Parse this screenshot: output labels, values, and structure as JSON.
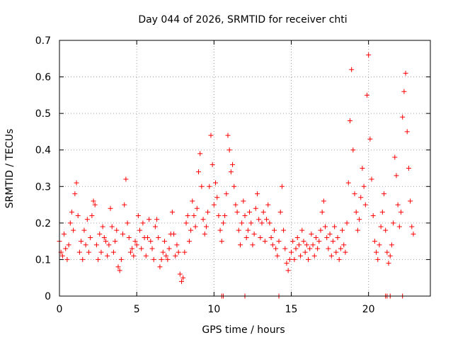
{
  "chart_data": {
    "type": "scatter",
    "title": "Day 044 of 2026, SRMTID for receiver chti",
    "xlabel": "GPS time / hours",
    "ylabel": "SRMTID / TECUs",
    "xlim": [
      0,
      24
    ],
    "ylim": [
      0,
      0.7
    ],
    "x_ticks": [
      0,
      5,
      10,
      15,
      20
    ],
    "x_tick_labels": [
      "0",
      "5",
      "10",
      "15",
      "20"
    ],
    "y_ticks": [
      0,
      0.1,
      0.2,
      0.3,
      0.4,
      0.5,
      0.6,
      0.7
    ],
    "y_tick_labels": [
      "0",
      "0.1",
      "0.2",
      "0.3",
      "0.4",
      "0.5",
      "0.6",
      "0.7"
    ],
    "grid": true,
    "marker": "plus",
    "series_color": "#ff0000",
    "series": [
      {
        "name": "SRMTID",
        "points": [
          [
            0.0,
            0.15
          ],
          [
            0.1,
            0.12
          ],
          [
            0.2,
            0.11
          ],
          [
            0.3,
            0.17
          ],
          [
            0.4,
            0.13
          ],
          [
            0.5,
            0.1
          ],
          [
            0.6,
            0.14
          ],
          [
            0.7,
            0.2
          ],
          [
            0.8,
            0.23
          ],
          [
            0.9,
            0.18
          ],
          [
            1.0,
            0.28
          ],
          [
            1.1,
            0.31
          ],
          [
            1.2,
            0.22
          ],
          [
            1.3,
            0.12
          ],
          [
            1.4,
            0.15
          ],
          [
            1.5,
            0.1
          ],
          [
            1.6,
            0.18
          ],
          [
            1.7,
            0.14
          ],
          [
            1.8,
            0.21
          ],
          [
            1.9,
            0.12
          ],
          [
            2.0,
            0.16
          ],
          [
            2.1,
            0.22
          ],
          [
            2.2,
            0.26
          ],
          [
            2.3,
            0.25
          ],
          [
            2.4,
            0.14
          ],
          [
            2.5,
            0.1
          ],
          [
            2.6,
            0.17
          ],
          [
            2.7,
            0.12
          ],
          [
            2.8,
            0.19
          ],
          [
            2.9,
            0.16
          ],
          [
            3.0,
            0.15
          ],
          [
            3.1,
            0.11
          ],
          [
            3.2,
            0.14
          ],
          [
            3.3,
            0.24
          ],
          [
            3.4,
            0.19
          ],
          [
            3.5,
            0.12
          ],
          [
            3.6,
            0.15
          ],
          [
            3.7,
            0.18
          ],
          [
            3.8,
            0.08
          ],
          [
            3.9,
            0.07
          ],
          [
            4.0,
            0.1
          ],
          [
            4.1,
            0.17
          ],
          [
            4.2,
            0.25
          ],
          [
            4.3,
            0.32
          ],
          [
            4.4,
            0.2
          ],
          [
            4.5,
            0.16
          ],
          [
            4.6,
            0.12
          ],
          [
            4.7,
            0.13
          ],
          [
            4.8,
            0.11
          ],
          [
            4.9,
            0.15
          ],
          [
            5.0,
            0.14
          ],
          [
            5.1,
            0.22
          ],
          [
            5.2,
            0.18
          ],
          [
            5.3,
            0.13
          ],
          [
            5.4,
            0.2
          ],
          [
            5.5,
            0.16
          ],
          [
            5.6,
            0.11
          ],
          [
            5.7,
            0.16
          ],
          [
            5.8,
            0.21
          ],
          [
            5.9,
            0.15
          ],
          [
            6.0,
            0.13
          ],
          [
            6.1,
            0.1
          ],
          [
            6.2,
            0.19
          ],
          [
            6.3,
            0.21
          ],
          [
            6.4,
            0.16
          ],
          [
            6.5,
            0.08
          ],
          [
            6.6,
            0.1
          ],
          [
            6.7,
            0.12
          ],
          [
            6.8,
            0.15
          ],
          [
            6.9,
            0.11
          ],
          [
            7.0,
            0.1
          ],
          [
            7.1,
            0.13
          ],
          [
            7.2,
            0.17
          ],
          [
            7.3,
            0.23
          ],
          [
            7.4,
            0.17
          ],
          [
            7.5,
            0.11
          ],
          [
            7.6,
            0.14
          ],
          [
            7.7,
            0.12
          ],
          [
            7.8,
            0.06
          ],
          [
            7.9,
            0.04
          ],
          [
            8.0,
            0.05
          ],
          [
            8.1,
            0.12
          ],
          [
            8.2,
            0.2
          ],
          [
            8.3,
            0.22
          ],
          [
            8.4,
            0.15
          ],
          [
            8.5,
            0.18
          ],
          [
            8.6,
            0.26
          ],
          [
            8.7,
            0.22
          ],
          [
            8.8,
            0.19
          ],
          [
            8.9,
            0.24
          ],
          [
            9.0,
            0.34
          ],
          [
            9.1,
            0.39
          ],
          [
            9.2,
            0.3
          ],
          [
            9.3,
            0.21
          ],
          [
            9.4,
            0.17
          ],
          [
            9.5,
            0.19
          ],
          [
            9.6,
            0.23
          ],
          [
            9.7,
            0.3
          ],
          [
            9.8,
            0.44
          ],
          [
            9.9,
            0.36
          ],
          [
            10.0,
            0.25
          ],
          [
            10.1,
            0.31
          ],
          [
            10.2,
            0.27
          ],
          [
            10.3,
            0.22
          ],
          [
            10.4,
            0.18
          ],
          [
            10.5,
            0.15
          ],
          [
            10.6,
            0.2
          ],
          [
            10.7,
            0.22
          ],
          [
            10.8,
            0.28
          ],
          [
            10.9,
            0.44
          ],
          [
            11.0,
            0.4
          ],
          [
            11.1,
            0.34
          ],
          [
            11.2,
            0.36
          ],
          [
            11.3,
            0.3
          ],
          [
            11.4,
            0.25
          ],
          [
            11.5,
            0.23
          ],
          [
            11.6,
            0.18
          ],
          [
            11.7,
            0.14
          ],
          [
            11.8,
            0.2
          ],
          [
            11.9,
            0.26
          ],
          [
            12.0,
            0.22
          ],
          [
            12.1,
            0.16
          ],
          [
            12.2,
            0.18
          ],
          [
            12.3,
            0.23
          ],
          [
            12.4,
            0.2
          ],
          [
            12.5,
            0.14
          ],
          [
            12.6,
            0.17
          ],
          [
            12.7,
            0.24
          ],
          [
            12.8,
            0.28
          ],
          [
            12.9,
            0.21
          ],
          [
            13.0,
            0.16
          ],
          [
            13.1,
            0.2
          ],
          [
            13.2,
            0.23
          ],
          [
            13.3,
            0.15
          ],
          [
            13.4,
            0.21
          ],
          [
            13.5,
            0.25
          ],
          [
            13.6,
            0.2
          ],
          [
            13.7,
            0.16
          ],
          [
            13.8,
            0.14
          ],
          [
            13.9,
            0.18
          ],
          [
            14.0,
            0.13
          ],
          [
            14.1,
            0.11
          ],
          [
            14.2,
            0.15
          ],
          [
            14.3,
            0.23
          ],
          [
            14.4,
            0.3
          ],
          [
            14.5,
            0.18
          ],
          [
            14.6,
            0.13
          ],
          [
            14.7,
            0.09
          ],
          [
            14.8,
            0.07
          ],
          [
            14.9,
            0.1
          ],
          [
            15.0,
            0.12
          ],
          [
            15.1,
            0.15
          ],
          [
            15.2,
            0.1
          ],
          [
            15.3,
            0.13
          ],
          [
            15.4,
            0.16
          ],
          [
            15.5,
            0.14
          ],
          [
            15.6,
            0.11
          ],
          [
            15.7,
            0.18
          ],
          [
            15.8,
            0.15
          ],
          [
            15.9,
            0.12
          ],
          [
            16.0,
            0.14
          ],
          [
            16.1,
            0.1
          ],
          [
            16.2,
            0.13
          ],
          [
            16.3,
            0.17
          ],
          [
            16.4,
            0.14
          ],
          [
            16.5,
            0.11
          ],
          [
            16.6,
            0.16
          ],
          [
            16.7,
            0.13
          ],
          [
            16.8,
            0.15
          ],
          [
            16.9,
            0.18
          ],
          [
            17.0,
            0.23
          ],
          [
            17.1,
            0.26
          ],
          [
            17.2,
            0.19
          ],
          [
            17.3,
            0.16
          ],
          [
            17.4,
            0.13
          ],
          [
            17.5,
            0.17
          ],
          [
            17.6,
            0.11
          ],
          [
            17.7,
            0.15
          ],
          [
            17.8,
            0.19
          ],
          [
            17.9,
            0.12
          ],
          [
            18.0,
            0.16
          ],
          [
            18.1,
            0.1
          ],
          [
            18.2,
            0.13
          ],
          [
            18.3,
            0.18
          ],
          [
            18.4,
            0.14
          ],
          [
            18.5,
            0.12
          ],
          [
            18.6,
            0.2
          ],
          [
            18.7,
            0.31
          ],
          [
            18.8,
            0.48
          ],
          [
            18.9,
            0.62
          ],
          [
            19.0,
            0.4
          ],
          [
            19.1,
            0.28
          ],
          [
            19.2,
            0.23
          ],
          [
            19.3,
            0.18
          ],
          [
            19.4,
            0.21
          ],
          [
            19.5,
            0.27
          ],
          [
            19.6,
            0.35
          ],
          [
            19.7,
            0.3
          ],
          [
            19.8,
            0.25
          ],
          [
            19.9,
            0.55
          ],
          [
            20.0,
            0.66
          ],
          [
            20.1,
            0.43
          ],
          [
            20.2,
            0.32
          ],
          [
            20.3,
            0.22
          ],
          [
            20.4,
            0.15
          ],
          [
            20.5,
            0.12
          ],
          [
            20.6,
            0.1
          ],
          [
            20.7,
            0.14
          ],
          [
            20.8,
            0.19
          ],
          [
            20.9,
            0.23
          ],
          [
            21.0,
            0.28
          ],
          [
            21.1,
            0.18
          ],
          [
            21.2,
            0.12
          ],
          [
            21.3,
            0.09
          ],
          [
            21.4,
            0.11
          ],
          [
            21.5,
            0.14
          ],
          [
            21.6,
            0.2
          ],
          [
            21.7,
            0.38
          ],
          [
            21.8,
            0.33
          ],
          [
            21.9,
            0.25
          ],
          [
            22.0,
            0.19
          ],
          [
            22.1,
            0.23
          ],
          [
            22.2,
            0.49
          ],
          [
            22.3,
            0.56
          ],
          [
            22.4,
            0.61
          ],
          [
            22.5,
            0.45
          ],
          [
            22.6,
            0.35
          ],
          [
            22.7,
            0.26
          ],
          [
            22.8,
            0.19
          ],
          [
            22.9,
            0.17
          ]
        ]
      }
    ],
    "zero_points_x": [
      10.5,
      10.6,
      12.0,
      14.2,
      21.1,
      21.2,
      21.4,
      22.2
    ]
  }
}
